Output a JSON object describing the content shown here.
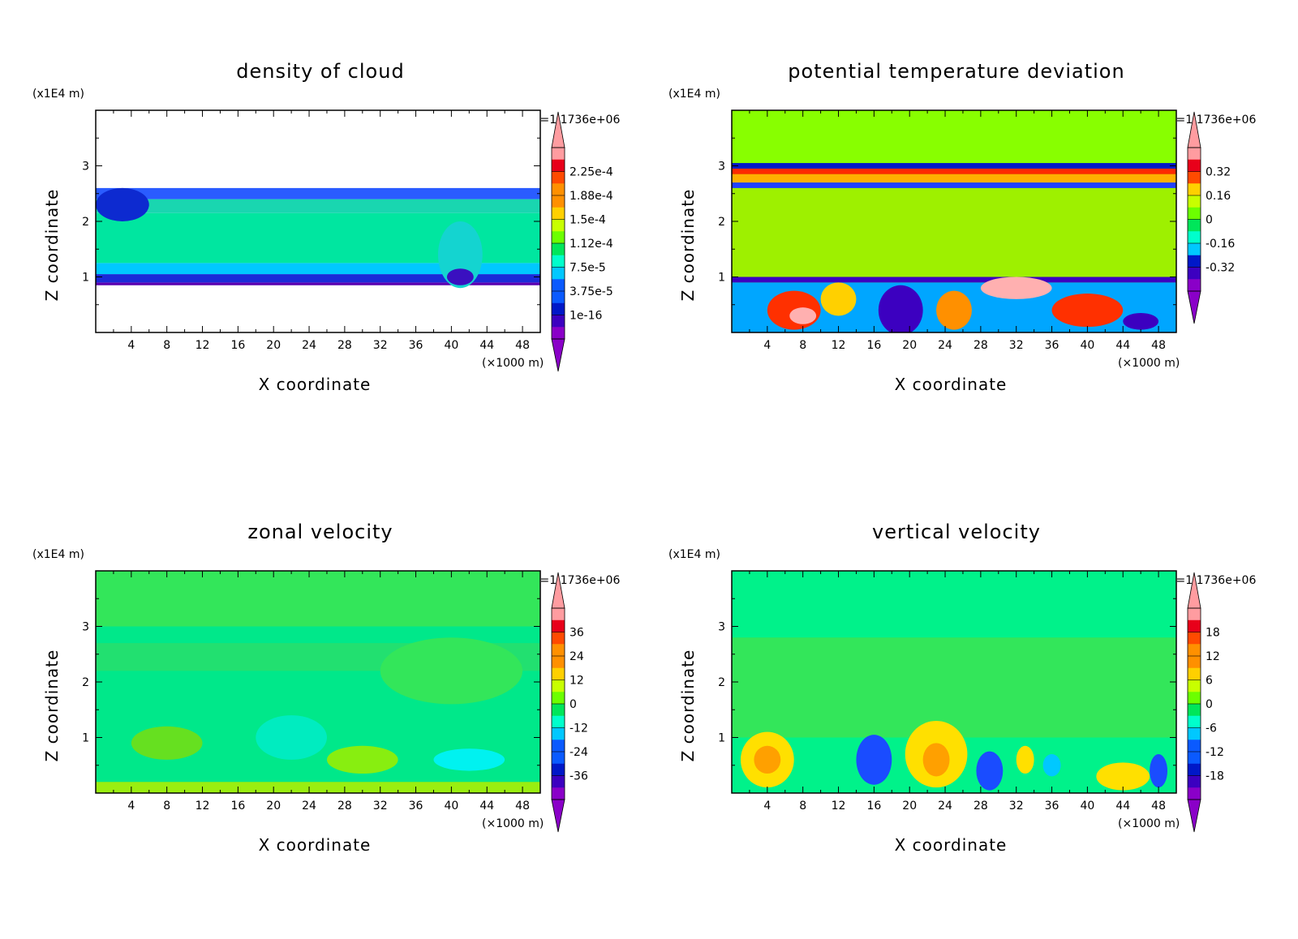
{
  "chart_data": [
    {
      "type": "heatmap",
      "title": "density of cloud",
      "xlabel": "X coordinate",
      "ylabel": "Z coordinate",
      "x_unit": "(×1000 m)",
      "y_unit": "(x1E4 m)",
      "time_label": "t=1.1736e+06",
      "xlim": [
        0,
        50
      ],
      "ylim": [
        0,
        4
      ],
      "x_ticks": [
        "4",
        "8",
        "12",
        "16",
        "20",
        "24",
        "28",
        "32",
        "36",
        "40",
        "44",
        "48"
      ],
      "y_ticks": [
        "1",
        "2",
        "3"
      ],
      "colorbar_labels": [
        "2.25e-4",
        "1.88e-4",
        "1.5e-4",
        "1.12e-4",
        "7.5e-5",
        "3.75e-5",
        "1e-16"
      ],
      "colorbar_values": [
        0.000225,
        0.000188,
        0.00015,
        0.000112,
        7.5e-05,
        3.75e-05,
        1e-16
      ],
      "bands": [
        {
          "z": [
            0.85,
            0.9
          ],
          "color": "#5a00b0"
        },
        {
          "z": [
            0.9,
            1.05
          ],
          "color": "#1a2ad8"
        },
        {
          "z": [
            1.05,
            1.25
          ],
          "color": "#00c8ff"
        },
        {
          "z": [
            1.25,
            2.15
          ],
          "color": "#00e6a0"
        },
        {
          "z": [
            2.15,
            2.4
          ],
          "color": "#19d6b0"
        },
        {
          "z": [
            2.4,
            2.6
          ],
          "color": "#2a5cff"
        }
      ],
      "blobs": [
        {
          "x": 3,
          "z": 2.3,
          "rx": 3,
          "rz": 0.3,
          "color": "#0d2ad0"
        },
        {
          "x": 41,
          "z": 1.4,
          "rx": 2.5,
          "rz": 0.6,
          "color": "#14d4d0"
        },
        {
          "x": 41,
          "z": 1.0,
          "rx": 1.5,
          "rz": 0.15,
          "color": "#3a10c0"
        }
      ]
    },
    {
      "type": "heatmap",
      "title": "potential temperature deviation",
      "xlabel": "X coordinate",
      "ylabel": "Z coordinate",
      "x_unit": "(×1000 m)",
      "y_unit": "(x1E4 m)",
      "time_label": "t=1.1736e+06",
      "xlim": [
        0,
        50
      ],
      "ylim": [
        0,
        4
      ],
      "x_ticks": [
        "4",
        "8",
        "12",
        "16",
        "20",
        "24",
        "28",
        "32",
        "36",
        "40",
        "44",
        "48"
      ],
      "y_ticks": [
        "1",
        "2",
        "3"
      ],
      "colorbar_labels": [
        "0.32",
        "0.16",
        "0",
        "-0.16",
        "-0.32"
      ],
      "colorbar_values": [
        0.32,
        0.16,
        0,
        -0.16,
        -0.32
      ],
      "background": "#88ff00",
      "bands": [
        {
          "z": [
            0,
            0.9
          ],
          "color": "#00a6ff"
        },
        {
          "z": [
            0.9,
            1.0
          ],
          "color": "#3c00c0"
        },
        {
          "z": [
            1.0,
            2.6
          ],
          "color": "#9ef000"
        },
        {
          "z": [
            2.6,
            2.7
          ],
          "color": "#2040ff"
        },
        {
          "z": [
            2.7,
            2.85
          ],
          "color": "#ffb000"
        },
        {
          "z": [
            2.85,
            2.95
          ],
          "color": "#ff2a00"
        },
        {
          "z": [
            2.95,
            3.05
          ],
          "color": "#0018c8"
        }
      ],
      "blobs": [
        {
          "x": 7,
          "z": 0.4,
          "rx": 3,
          "rz": 0.35,
          "color": "#ff3000"
        },
        {
          "x": 8,
          "z": 0.3,
          "rx": 1.5,
          "rz": 0.15,
          "color": "#ffb0b0"
        },
        {
          "x": 12,
          "z": 0.6,
          "rx": 2,
          "rz": 0.3,
          "color": "#ffd000"
        },
        {
          "x": 19,
          "z": 0.4,
          "rx": 2.5,
          "rz": 0.45,
          "color": "#3c00c0"
        },
        {
          "x": 25,
          "z": 0.4,
          "rx": 2,
          "rz": 0.35,
          "color": "#ff9000"
        },
        {
          "x": 32,
          "z": 0.8,
          "rx": 4,
          "rz": 0.2,
          "color": "#ffb0b0"
        },
        {
          "x": 40,
          "z": 0.4,
          "rx": 4,
          "rz": 0.3,
          "color": "#ff3000"
        },
        {
          "x": 46,
          "z": 0.2,
          "rx": 2,
          "rz": 0.15,
          "color": "#3c00c0"
        }
      ]
    },
    {
      "type": "heatmap",
      "title": "zonal velocity",
      "xlabel": "X coordinate",
      "ylabel": "Z coordinate",
      "x_unit": "(×1000 m)",
      "y_unit": "(x1E4 m)",
      "time_label": "t=1.1736e+06",
      "xlim": [
        0,
        50
      ],
      "ylim": [
        0,
        4
      ],
      "x_ticks": [
        "4",
        "8",
        "12",
        "16",
        "20",
        "24",
        "28",
        "32",
        "36",
        "40",
        "44",
        "48"
      ],
      "y_ticks": [
        "1",
        "2",
        "3"
      ],
      "colorbar_labels": [
        "36",
        "24",
        "12",
        "0",
        "-12",
        "-24",
        "-36"
      ],
      "colorbar_values": [
        36,
        24,
        12,
        0,
        -12,
        -24,
        -36
      ],
      "background": "#00e88a",
      "bands": [
        {
          "z": [
            3.0,
            4.0
          ],
          "color": "#33e65a"
        },
        {
          "z": [
            2.2,
            2.7
          ],
          "color": "#22e070"
        },
        {
          "z": [
            0.0,
            0.2
          ],
          "color": "#9aee10"
        }
      ],
      "blobs": [
        {
          "x": 8,
          "z": 0.9,
          "rx": 4,
          "rz": 0.3,
          "color": "#66e020"
        },
        {
          "x": 22,
          "z": 1.0,
          "rx": 4,
          "rz": 0.4,
          "color": "#00ecc0"
        },
        {
          "x": 30,
          "z": 0.6,
          "rx": 4,
          "rz": 0.25,
          "color": "#88ee10"
        },
        {
          "x": 42,
          "z": 0.6,
          "rx": 4,
          "rz": 0.2,
          "color": "#00f2f0"
        },
        {
          "x": 40,
          "z": 2.2,
          "rx": 8,
          "rz": 0.6,
          "color": "#33e65a"
        }
      ]
    },
    {
      "type": "heatmap",
      "title": "vertical velocity",
      "xlabel": "X coordinate",
      "ylabel": "Z coordinate",
      "x_unit": "(×1000 m)",
      "y_unit": "(x1E4 m)",
      "time_label": "t=1.1736e+06",
      "xlim": [
        0,
        50
      ],
      "ylim": [
        0,
        4
      ],
      "x_ticks": [
        "4",
        "8",
        "12",
        "16",
        "20",
        "24",
        "28",
        "32",
        "36",
        "40",
        "44",
        "48"
      ],
      "y_ticks": [
        "1",
        "2",
        "3"
      ],
      "colorbar_labels": [
        "18",
        "12",
        "6",
        "0",
        "-6",
        "-12",
        "-18"
      ],
      "colorbar_values": [
        18,
        12,
        6,
        0,
        -6,
        -12,
        -18
      ],
      "background": "#00f28a",
      "bands": [
        {
          "z": [
            1.0,
            2.8
          ],
          "color": "#33e65a"
        }
      ],
      "blobs": [
        {
          "x": 4,
          "z": 0.6,
          "rx": 3,
          "rz": 0.5,
          "color": "#ffe000"
        },
        {
          "x": 4,
          "z": 0.6,
          "rx": 1.5,
          "rz": 0.25,
          "color": "#ffa000"
        },
        {
          "x": 16,
          "z": 0.6,
          "rx": 2,
          "rz": 0.45,
          "color": "#1a4cff"
        },
        {
          "x": 23,
          "z": 0.7,
          "rx": 3.5,
          "rz": 0.6,
          "color": "#ffe000"
        },
        {
          "x": 23,
          "z": 0.6,
          "rx": 1.5,
          "rz": 0.3,
          "color": "#ffa000"
        },
        {
          "x": 29,
          "z": 0.4,
          "rx": 1.5,
          "rz": 0.35,
          "color": "#1a4cff"
        },
        {
          "x": 44,
          "z": 0.3,
          "rx": 3,
          "rz": 0.25,
          "color": "#ffe000"
        },
        {
          "x": 48,
          "z": 0.4,
          "rx": 1,
          "rz": 0.3,
          "color": "#1a4cff"
        },
        {
          "x": 33,
          "z": 0.6,
          "rx": 1,
          "rz": 0.25,
          "color": "#ffe000"
        },
        {
          "x": 36,
          "z": 0.5,
          "rx": 1,
          "rz": 0.2,
          "color": "#00c8ff"
        }
      ]
    }
  ]
}
